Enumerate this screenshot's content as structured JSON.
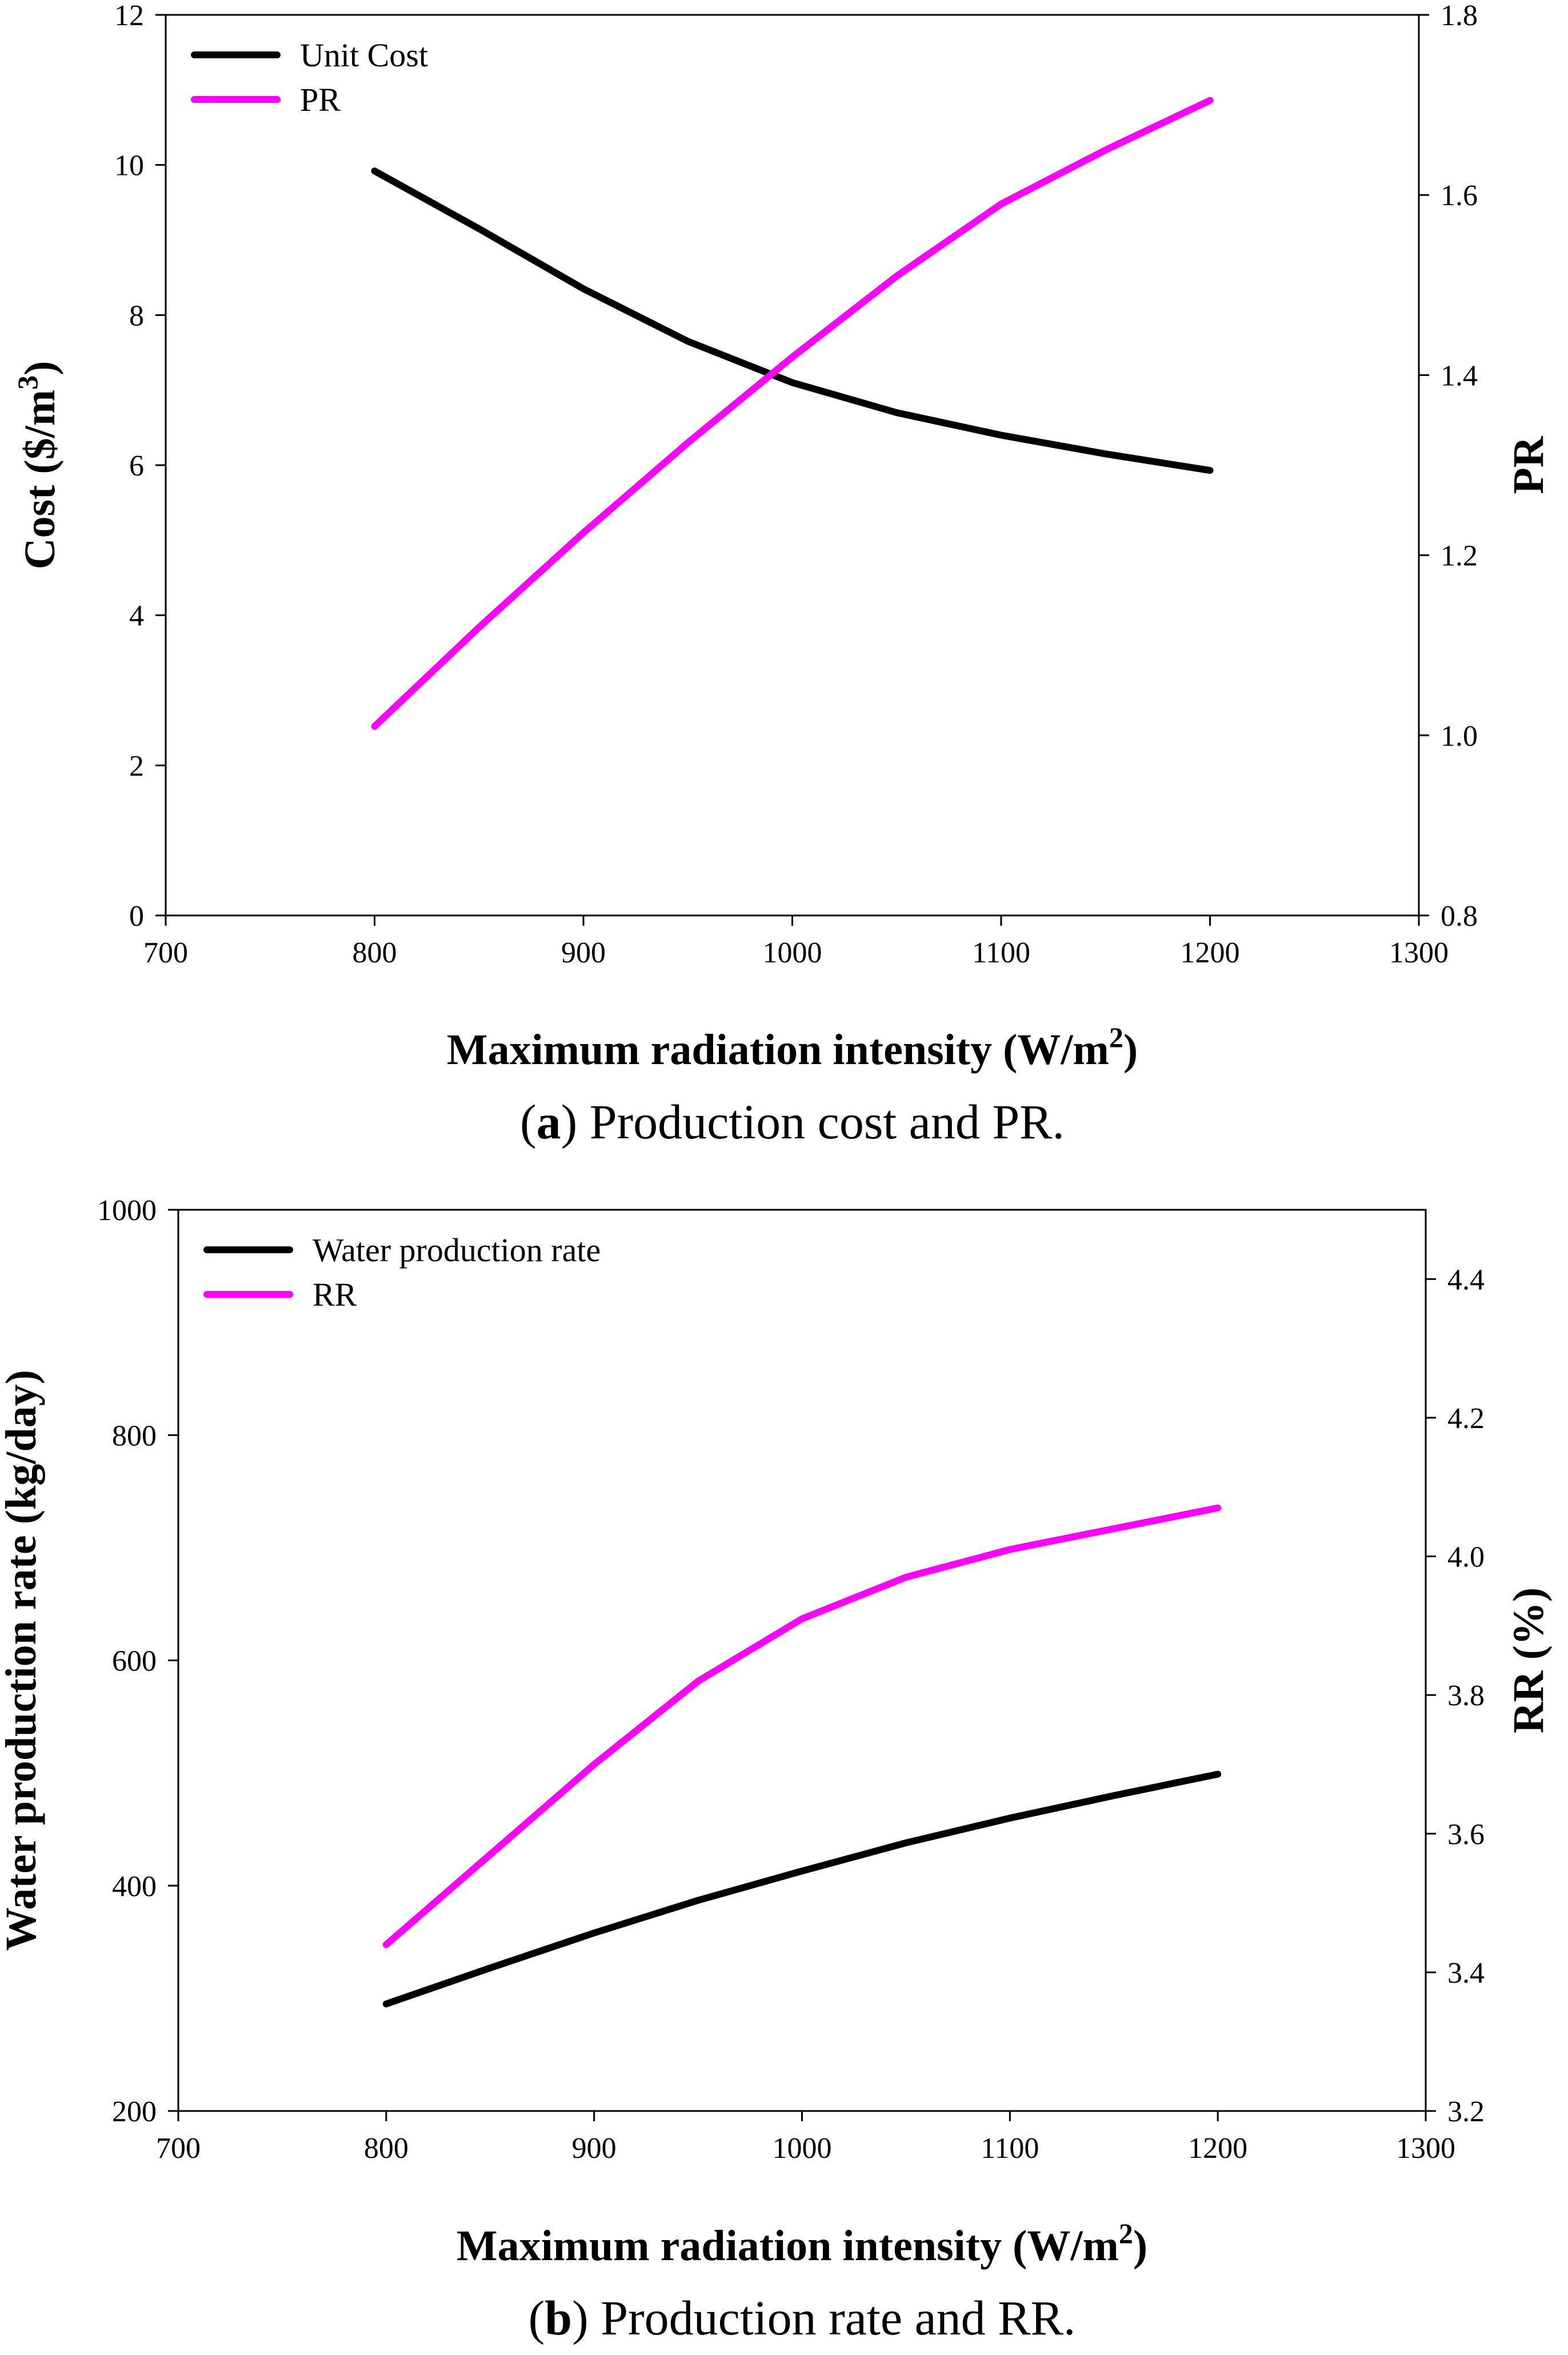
{
  "chart_data": [
    {
      "type": "line",
      "id": "a",
      "caption_letter": "a",
      "caption_text": " Production cost and PR.",
      "xlabel": "Maximum radiation intensity (W/m",
      "xlabel_sup": "2",
      "xlabel_end": ")",
      "ylabel_left": "Cost ($/m",
      "ylabel_left_sup": "3",
      "ylabel_left_end": ")",
      "ylabel_right": "PR",
      "xlim": [
        700,
        1300
      ],
      "ylim_left": [
        0,
        12
      ],
      "ylim_right": [
        0.8,
        1.8
      ],
      "x_ticks": [
        "700",
        "800",
        "900",
        "1000",
        "1100",
        "1200",
        "1300"
      ],
      "y_left_ticks": [
        "0",
        "2",
        "4",
        "6",
        "8",
        "10",
        "12"
      ],
      "y_right_ticks": [
        "0.8",
        "1.0",
        "1.2",
        "1.4",
        "1.6",
        "1.8"
      ],
      "legend_position": "top-left",
      "grid": false,
      "series": [
        {
          "name": "Unit Cost",
          "axis": "left",
          "color": "#000000",
          "x": [
            800,
            850,
            900,
            950,
            1000,
            1050,
            1100,
            1150,
            1200
          ],
          "y": [
            9.92,
            9.15,
            8.35,
            7.65,
            7.1,
            6.7,
            6.4,
            6.15,
            5.93
          ]
        },
        {
          "name": "PR",
          "axis": "right",
          "color": "#ff00ff",
          "x": [
            800,
            850,
            900,
            950,
            1000,
            1050,
            1100,
            1150,
            1200
          ],
          "y": [
            1.01,
            1.12,
            1.225,
            1.325,
            1.42,
            1.51,
            1.59,
            1.65,
            1.705
          ]
        }
      ]
    },
    {
      "type": "line",
      "id": "b",
      "caption_letter": "b",
      "caption_text": " Production rate and RR.",
      "xlabel": "Maximum radiation intensity (W/m",
      "xlabel_sup": "2",
      "xlabel_end": ")",
      "ylabel_left": "Water production rate (kg/day)",
      "ylabel_left_sup": "",
      "ylabel_left_end": "",
      "ylabel_right": "RR (%)",
      "xlim": [
        700,
        1300
      ],
      "ylim_left": [
        200,
        1000
      ],
      "ylim_right": [
        3.2,
        4.5
      ],
      "x_ticks": [
        "700",
        "800",
        "900",
        "1000",
        "1100",
        "1200",
        "1300"
      ],
      "y_left_ticks": [
        "200",
        "400",
        "600",
        "800",
        "1000"
      ],
      "y_right_ticks": [
        "3.2",
        "3.4",
        "3.6",
        "3.8",
        "4.0",
        "4.2",
        "4.4"
      ],
      "legend_position": "top-left",
      "grid": false,
      "series": [
        {
          "name": "Water production rate",
          "axis": "left",
          "color": "#000000",
          "x": [
            800,
            850,
            900,
            950,
            1000,
            1050,
            1100,
            1150,
            1200
          ],
          "y": [
            295,
            327,
            358,
            387,
            413,
            438,
            460,
            480,
            499
          ]
        },
        {
          "name": "RR",
          "axis": "right",
          "color": "#ff00ff",
          "x": [
            800,
            850,
            900,
            950,
            1000,
            1050,
            1100,
            1150,
            1200
          ],
          "y": [
            3.44,
            3.57,
            3.7,
            3.82,
            3.91,
            3.97,
            4.01,
            4.04,
            4.07
          ]
        }
      ]
    }
  ]
}
